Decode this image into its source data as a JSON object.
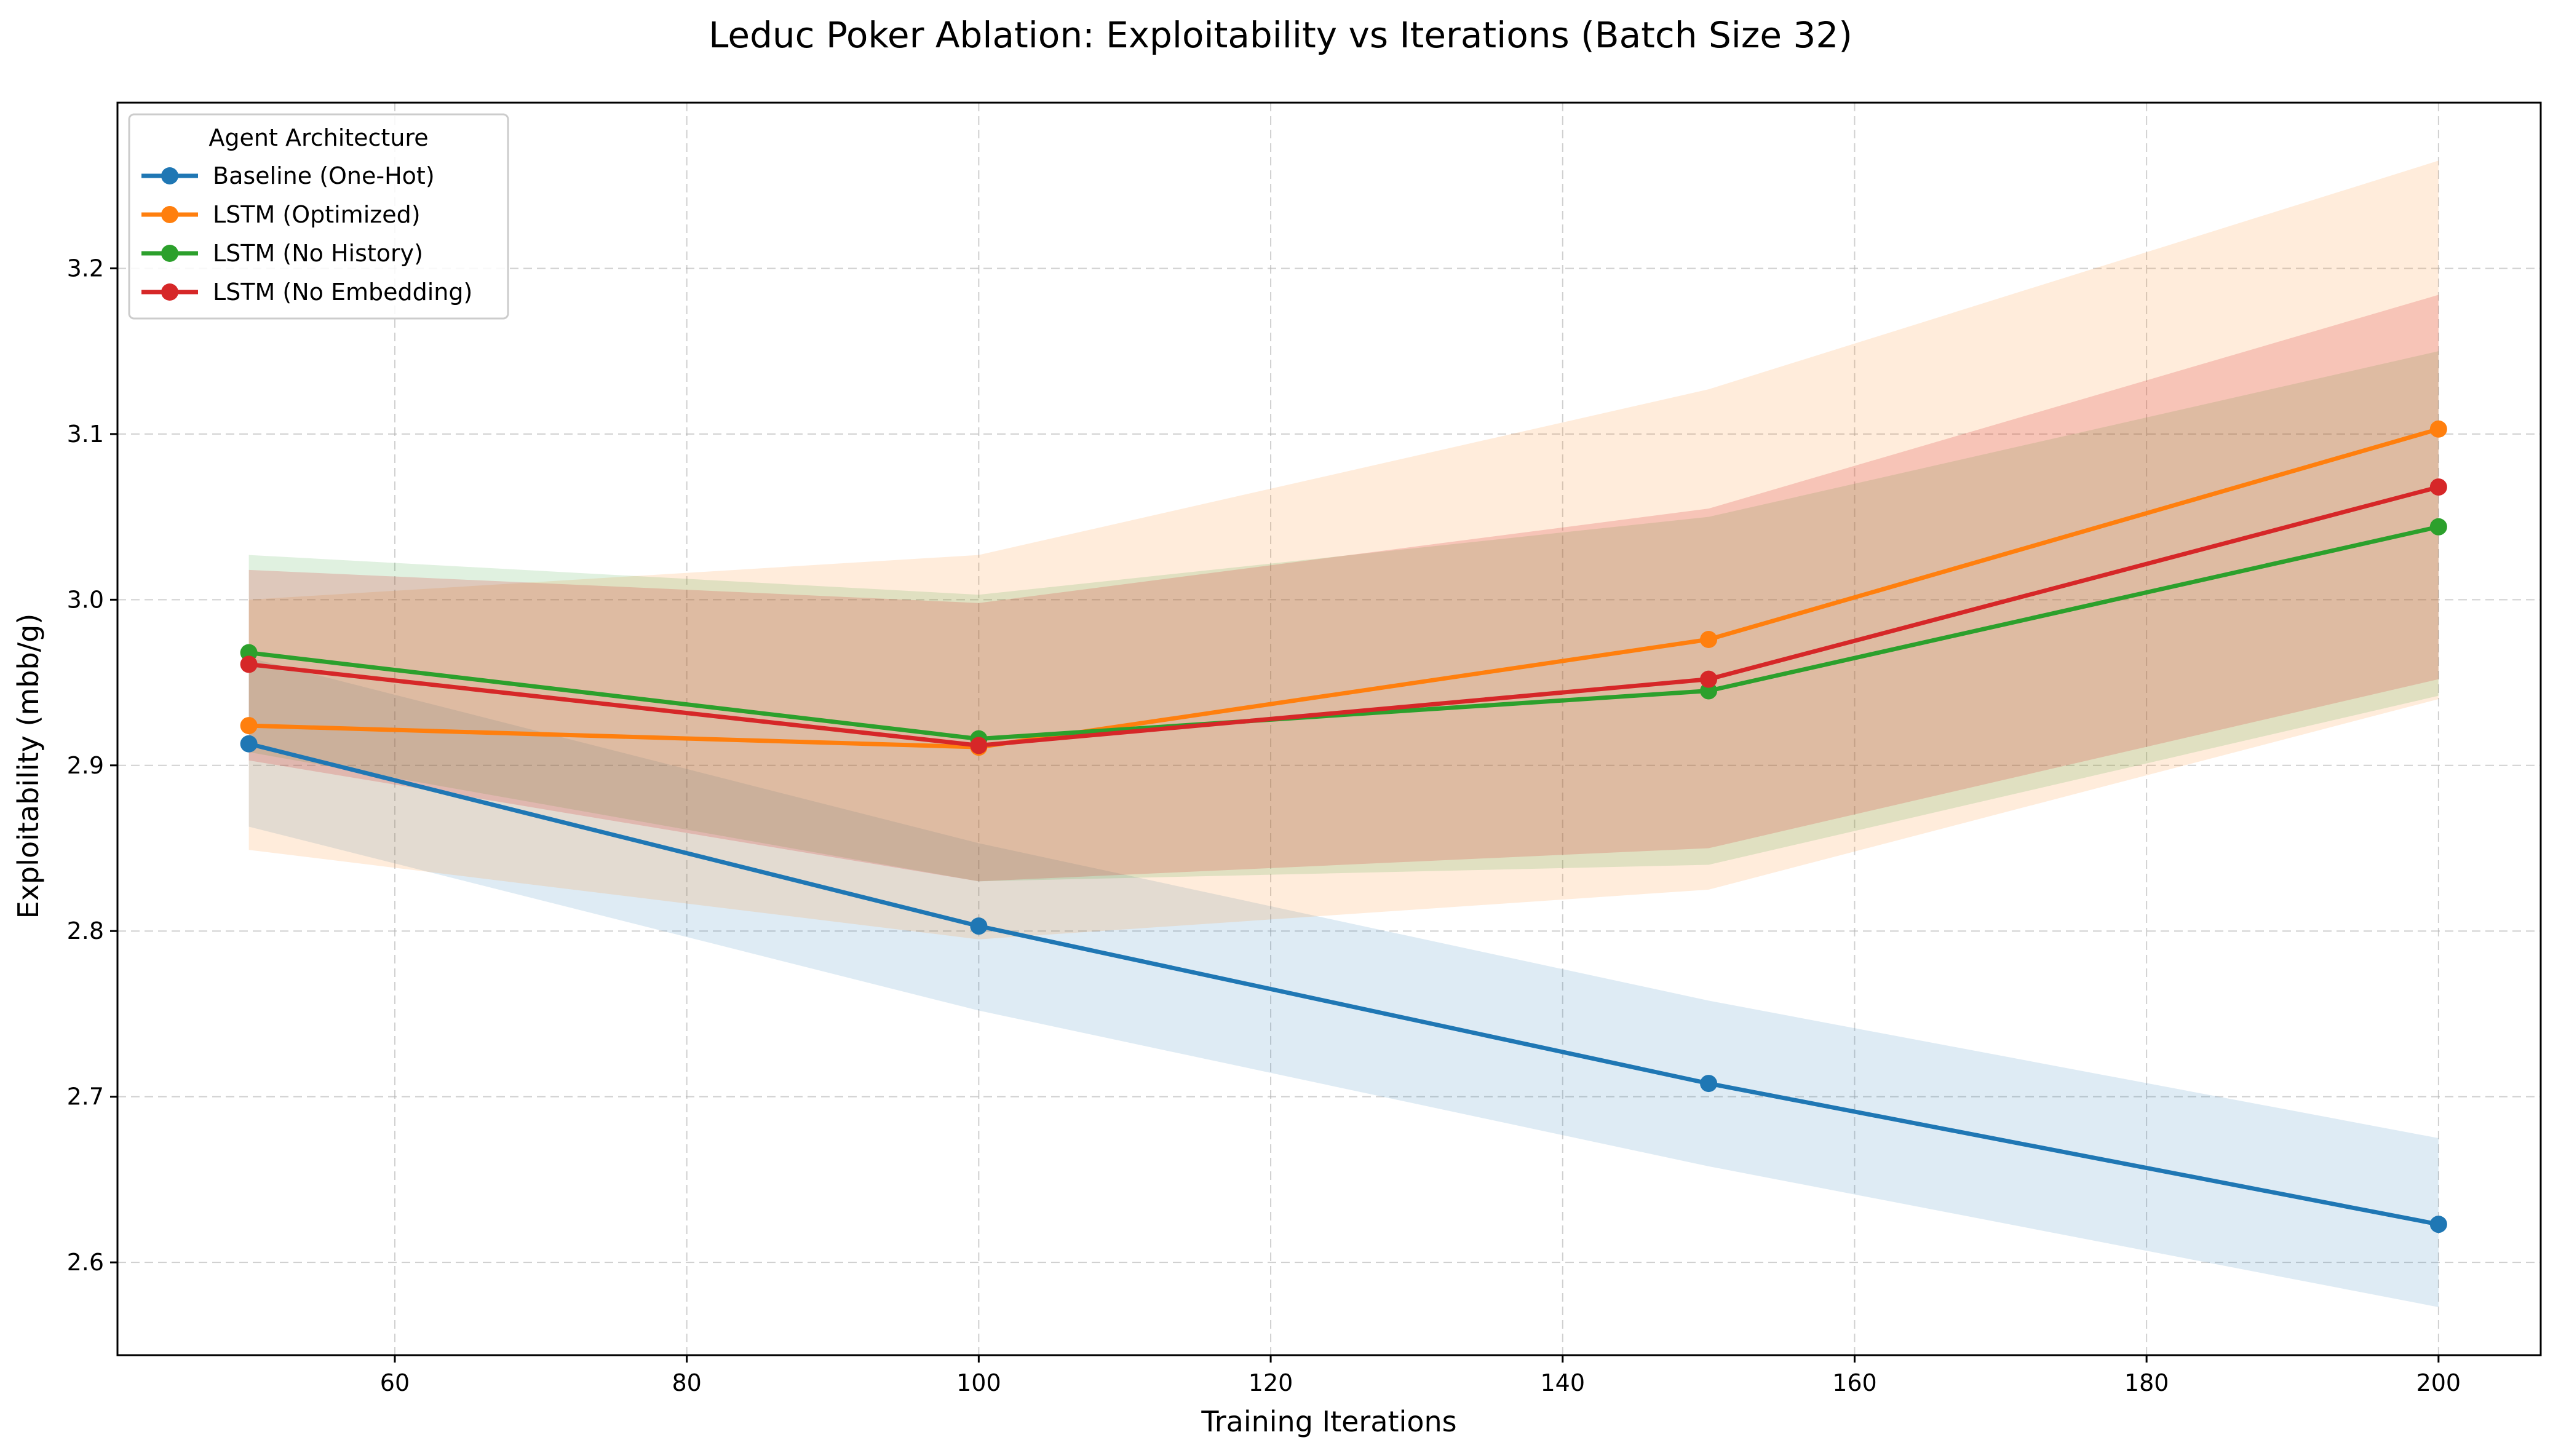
{
  "chart_data": {
    "type": "line",
    "title": "Leduc Poker Ablation: Exploitability vs Iterations (Batch Size 32)",
    "xlabel": "Training Iterations",
    "ylabel": "Exploitability (mbb/g)",
    "xlim": [
      41,
      207
    ],
    "ylim": [
      2.544,
      3.3
    ],
    "xticks": [
      60,
      80,
      100,
      120,
      140,
      160,
      180,
      200
    ],
    "yticks": [
      2.6,
      2.7,
      2.8,
      2.9,
      3.0,
      3.1,
      3.2
    ],
    "grid": true,
    "legend": {
      "title": "Agent Architecture",
      "position": "top-left"
    },
    "x": [
      50,
      100,
      150,
      200
    ],
    "series": [
      {
        "name": "Baseline (One-Hot)",
        "color": "#1f77b4",
        "values": [
          2.913,
          2.803,
          2.708,
          2.623
        ],
        "band_upper": [
          2.965,
          2.853,
          2.758,
          2.675
        ],
        "band_lower": [
          2.863,
          2.752,
          2.658,
          2.573
        ],
        "band_opacity": 0.15
      },
      {
        "name": "LSTM (Optimized)",
        "color": "#ff7f0e",
        "values": [
          2.924,
          2.911,
          2.976,
          3.103
        ],
        "band_upper": [
          3.0,
          3.027,
          3.127,
          3.265
        ],
        "band_lower": [
          2.849,
          2.795,
          2.825,
          2.94
        ],
        "band_opacity": 0.15
      },
      {
        "name": "LSTM (No History)",
        "color": "#2ca02c",
        "values": [
          2.968,
          2.916,
          2.945,
          3.044
        ],
        "band_upper": [
          3.027,
          3.003,
          3.05,
          3.15
        ],
        "band_lower": [
          2.908,
          2.83,
          2.84,
          2.942
        ],
        "band_opacity": 0.15
      },
      {
        "name": "LSTM (No Embedding)",
        "color": "#d62728",
        "values": [
          2.961,
          2.912,
          2.952,
          3.068
        ],
        "band_upper": [
          3.018,
          2.998,
          3.055,
          3.184
        ],
        "band_lower": [
          2.903,
          2.83,
          2.85,
          2.952
        ],
        "band_opacity": 0.2
      }
    ]
  }
}
